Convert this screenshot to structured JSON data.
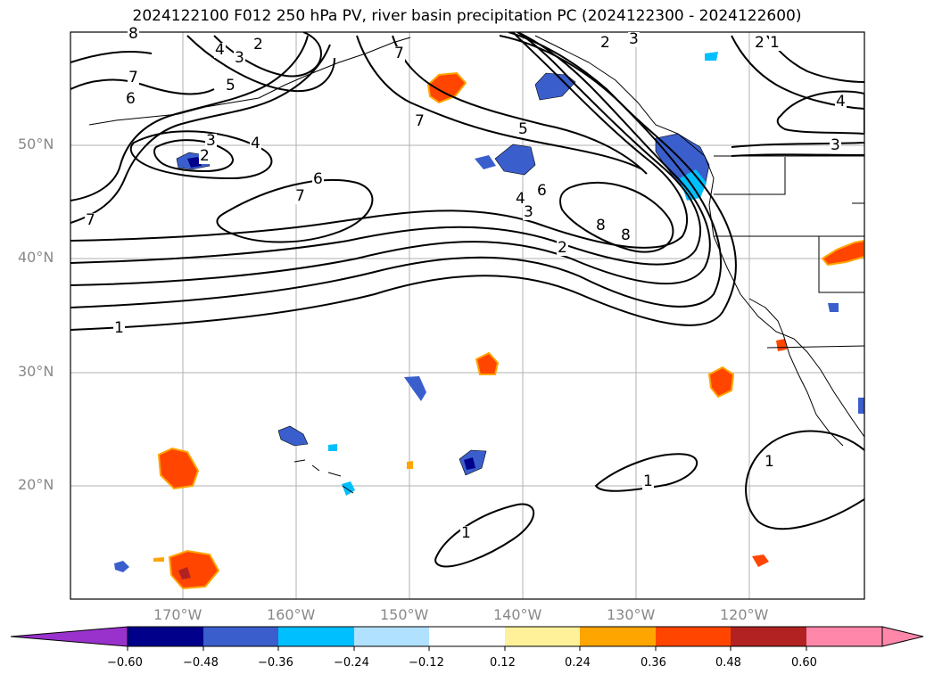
{
  "title": "2024122100 F012 250 hPa PV, river basin precipitation PC (2024122300 - 2024122600)",
  "map": {
    "lat_labels": [
      "50°N",
      "40°N",
      "30°N",
      "20°N"
    ],
    "lon_labels": [
      "170°W",
      "160°W",
      "150°W",
      "140°W",
      "130°W",
      "120°W"
    ],
    "contour_labels": [
      "8",
      "4",
      "3",
      "2",
      "5",
      "7",
      "6",
      "3",
      "4",
      "2",
      "7",
      "6",
      "7",
      "1",
      "8",
      "7",
      "5",
      "6",
      "4",
      "3",
      "2",
      "7",
      "8",
      "2",
      "3",
      "2",
      "1",
      "4",
      "3",
      "1",
      "1",
      "1"
    ]
  },
  "colorbar": {
    "ticks": [
      "−0.60",
      "−0.48",
      "−0.36",
      "−0.24",
      "−0.12",
      "0.12",
      "0.24",
      "0.36",
      "0.48",
      "0.60"
    ],
    "colors": [
      "#9932cc",
      "#00008b",
      "#3a5fcd",
      "#00bfff",
      "#b0e2ff",
      "#ffffff",
      "#fff09a",
      "#ffa500",
      "#ff4500",
      "#b22222",
      "#ff88aa"
    ]
  }
}
